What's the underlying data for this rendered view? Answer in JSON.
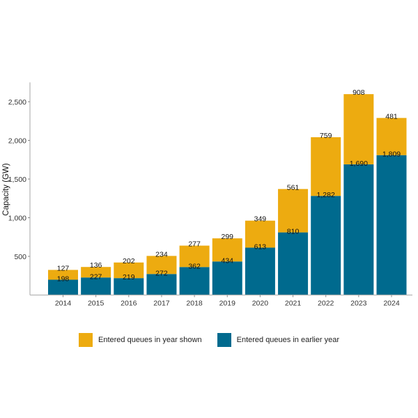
{
  "chart_data": {
    "type": "bar",
    "stacked": true,
    "title": "",
    "xlabel": "",
    "ylabel": "Capacity (GW)",
    "ylim": [
      0,
      2750
    ],
    "yticks": [
      500,
      1000,
      1500,
      2000,
      2500
    ],
    "ytick_labels": [
      "500",
      "1,000",
      "1,500",
      "2,000",
      "2,500"
    ],
    "categories": [
      "2014",
      "2015",
      "2016",
      "2017",
      "2018",
      "2019",
      "2020",
      "2021",
      "2022",
      "2023",
      "2024"
    ],
    "series": [
      {
        "name": "Entered queues in earlier year",
        "color": "#006A8E",
        "values": [
          198,
          227,
          219,
          272,
          362,
          434,
          613,
          810,
          1282,
          1690,
          1809
        ],
        "labels": [
          "198",
          "227",
          "219",
          "272",
          "362",
          "434",
          "613",
          "810",
          "1,282",
          "1,690",
          "1,809"
        ]
      },
      {
        "name": "Entered queues in year shown",
        "color": "#EDAB10",
        "values": [
          127,
          136,
          202,
          234,
          277,
          299,
          349,
          561,
          759,
          908,
          481
        ],
        "labels": [
          "127",
          "136",
          "202",
          "234",
          "277",
          "299",
          "349",
          "561",
          "759",
          "908",
          "481"
        ]
      }
    ],
    "legend": {
      "position": "bottom",
      "entries": [
        "Entered queues in year shown",
        "Entered queues in earlier year"
      ]
    },
    "grid": false
  },
  "legend": {
    "items": [
      {
        "label": "Entered queues in year shown",
        "color": "#EDAB10"
      },
      {
        "label": "Entered queues in earlier year",
        "color": "#006A8E"
      }
    ]
  }
}
